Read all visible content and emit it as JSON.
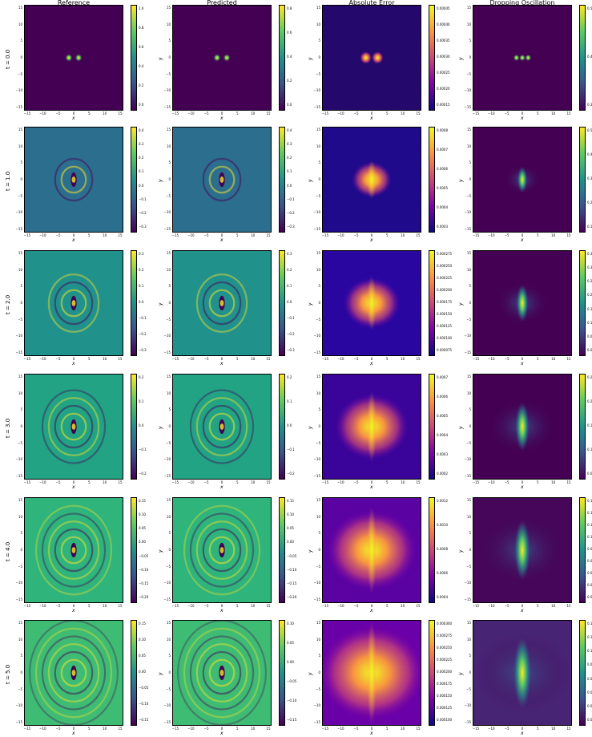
{
  "columns": [
    "Reference",
    "Predicted",
    "Absolute Error",
    "Dropping Oscillation"
  ],
  "rows": [
    "t = 0.0",
    "t = 1.0",
    "t = 2.0",
    "t = 3.0",
    "t = 4.0",
    "t = 5.0"
  ],
  "axis_ticks": [
    "−15",
    "−10",
    "−5",
    "0",
    "5",
    "10",
    "15"
  ],
  "xlabel": "x",
  "ylabel": "y",
  "colors": {
    "viridis": [
      "#440154",
      "#3b528b",
      "#21918c",
      "#5ec962",
      "#fde725"
    ],
    "plasma": [
      "#0d0887",
      "#7e03a8",
      "#cc4778",
      "#f89540",
      "#f0f921"
    ]
  },
  "chart_data": {
    "type": "heatmap",
    "x_range": [
      -16,
      16
    ],
    "y_range": [
      -16,
      16
    ],
    "colorbars": [
      [
        [
          "1.0",
          "0.8",
          "0.6",
          "0.4",
          "0.2",
          "0.0"
        ],
        [
          "0.8",
          "0.6",
          "0.4",
          "0.2",
          "0.0"
        ],
        [
          "0.00045",
          "0.00040",
          "0.00035",
          "0.00030",
          "0.00025",
          "0.00020",
          "0.00015"
        ],
        [
          "0.5",
          "0.4",
          "0.3"
        ]
      ],
      [
        [
          "0.4",
          "0.3",
          "0.2",
          "0.1",
          "0.0",
          "−0.1",
          "−0.2",
          "−0.3"
        ],
        [
          "0.4",
          "0.3",
          "0.2",
          "0.1",
          "0.0",
          "−0.1",
          "−0.2",
          "−0.3"
        ],
        [
          "0.0008",
          "0.0007",
          "0.0006",
          "0.0005",
          "0.0004",
          "0.0003"
        ],
        [
          "0.5",
          "0.4",
          "0.3",
          "0.2",
          "0.1"
        ]
      ],
      [
        [
          "0.3",
          "0.2",
          "0.1",
          "0.0",
          "−0.1",
          "−0.2",
          "−0.3"
        ],
        [
          "0.3",
          "0.2",
          "0.1",
          "0.0",
          "−0.1",
          "−0.2",
          "−0.3"
        ],
        [
          "0.000275",
          "0.000250",
          "0.000225",
          "0.000200",
          "0.000175",
          "0.000150",
          "0.000125",
          "0.000100",
          "0.000075"
        ],
        [
          "0.35",
          "0.30",
          "0.25",
          "0.20",
          "0.15",
          "0.10",
          "0.05",
          "0.00"
        ]
      ],
      [
        [
          "0.2",
          "0.1",
          "0.0",
          "−0.1",
          "−0.2"
        ],
        [
          "0.2",
          "0.1",
          "0.0",
          "−0.1",
          "−0.2"
        ],
        [
          "0.0007",
          "0.0006",
          "0.0005",
          "0.0004",
          "0.0003",
          "0.0002"
        ],
        [
          "0.25",
          "0.20",
          "0.15",
          "0.10",
          "0.05"
        ]
      ],
      [
        [
          "0.15",
          "0.10",
          "0.05",
          "0.00",
          "−0.05",
          "−0.10",
          "−0.15",
          "−0.20"
        ],
        [
          "0.15",
          "0.10",
          "0.05",
          "0.00",
          "−0.05",
          "−0.10",
          "−0.15",
          "−0.20"
        ],
        [
          "0.0012",
          "0.0010",
          "0.0008",
          "0.0006",
          "0.0004"
        ],
        [
          "0.16",
          "0.14",
          "0.12",
          "0.10",
          "0.08",
          "0.06",
          "0.04",
          "0.02",
          "0.00"
        ]
      ],
      [
        [
          "0.15",
          "0.10",
          "0.05",
          "0.00",
          "−0.05",
          "−0.10",
          "−0.15"
        ],
        [
          "0.10",
          "0.05",
          "0.00",
          "−0.05",
          "−0.10",
          "−0.15"
        ],
        [
          "0.000300",
          "0.000275",
          "0.000250",
          "0.000225",
          "0.000200",
          "0.000175",
          "0.000150",
          "0.000125",
          "0.000100"
        ],
        [
          "0.14",
          "0.12",
          "0.10",
          "0.08",
          "0.06",
          "0.04",
          "0.02",
          "0.00"
        ]
      ]
    ]
  }
}
